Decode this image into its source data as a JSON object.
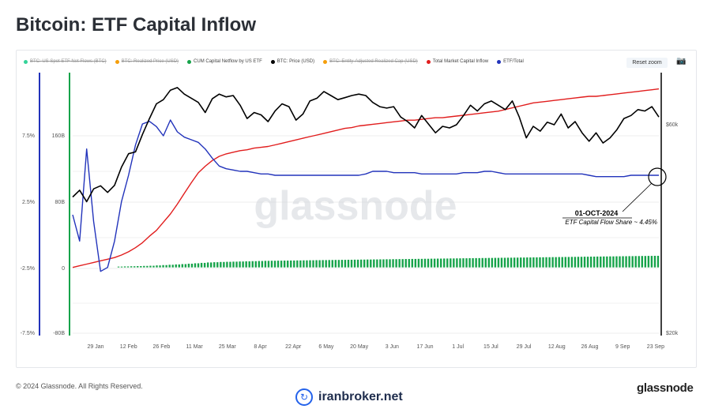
{
  "page": {
    "title": "Bitcoin: ETF Capital Inflow",
    "copyright": "© 2024 Glassnode. All Rights Reserved.",
    "brand": "glassnode",
    "watermark": "glassnode",
    "site_watermark": "iranbroker.net"
  },
  "toolbar": {
    "reset_label": "Reset zoom",
    "camera_icon": "camera-icon"
  },
  "legend": [
    {
      "label": "BTC: US Spot ETF Net Flows (BTC)",
      "color": "#34d399",
      "enabled": false
    },
    {
      "label": "BTC: Realized Price (USD)",
      "color": "#f59e0b",
      "enabled": false
    },
    {
      "label": "CUM Capital Netflow by US ETF",
      "color": "#16a34a",
      "enabled": true
    },
    {
      "label": "BTC: Price (USD)",
      "color": "#000000",
      "enabled": true
    },
    {
      "label": "BTC: Entity-Adjusted Realized Cap (USD)",
      "color": "#f59e0b",
      "enabled": false
    },
    {
      "label": "Total Market Capital Inflow",
      "color": "#e11d1d",
      "enabled": true
    },
    {
      "label": "ETF/Total",
      "color": "#2233bb",
      "enabled": true
    }
  ],
  "annotation": {
    "date": "01-OCT-2024",
    "text": "ETF Capital Flow Share ~ 4.45%"
  },
  "chart_data": {
    "type": "line",
    "x_ticks": [
      "29 Jan",
      "12 Feb",
      "26 Feb",
      "11 Mar",
      "25 Mar",
      "8 Apr",
      "22 Apr",
      "6 May",
      "20 May",
      "3 Jun",
      "17 Jun",
      "1 Jul",
      "15 Jul",
      "29 Jul",
      "12 Aug",
      "26 Aug",
      "9 Sep",
      "23 Sep"
    ],
    "left_axis_pct": {
      "ticks": [
        "7.5%",
        "2.5%",
        "-2.5%",
        "-7.5%"
      ],
      "range": [
        -7.5,
        7.5
      ]
    },
    "left_axis_usd": {
      "ticks": [
        "160B",
        "80B",
        "0",
        "-80B"
      ],
      "range": [
        -80,
        160
      ]
    },
    "right_axis": {
      "ticks": [
        "$60k",
        "$20k"
      ],
      "scale": "log"
    },
    "series": [
      {
        "name": "BTC: Price (USD)",
        "color": "#000000",
        "unit": "USD",
        "values": [
          41000,
          42500,
          40000,
          42800,
          43500,
          42000,
          43600,
          48000,
          51500,
          52000,
          57000,
          62000,
          67000,
          68500,
          72000,
          73000,
          70500,
          69000,
          67500,
          64000,
          68800,
          70500,
          69500,
          70000,
          66500,
          62000,
          64000,
          63200,
          61000,
          64500,
          67000,
          66000,
          61500,
          63500,
          68000,
          69000,
          71500,
          70000,
          68500,
          69200,
          70000,
          70500,
          70000,
          67500,
          66000,
          65500,
          66000,
          62500,
          61000,
          59000,
          63000,
          60200,
          57500,
          59500,
          59000,
          60000,
          63000,
          66500,
          64500,
          67000,
          68000,
          66500,
          65000,
          68000,
          62500,
          56000,
          59500,
          58000,
          60800,
          60000,
          63500,
          59000,
          61000,
          57500,
          55000,
          57500,
          54500,
          56000,
          58500,
          62000,
          63000,
          65000,
          64500,
          66000,
          62500
        ]
      },
      {
        "name": "Total Market Capital Inflow",
        "color": "#e11d1d",
        "unit": "USD B",
        "values": [
          0,
          2,
          4,
          6,
          8,
          10,
          12,
          15,
          19,
          24,
          30,
          38,
          45,
          55,
          65,
          77,
          90,
          103,
          115,
          123,
          130,
          135,
          138,
          140,
          142,
          143,
          145,
          146,
          147,
          149,
          151,
          153,
          155,
          157,
          159,
          161,
          163,
          165,
          167,
          169,
          170,
          172,
          173,
          174,
          175,
          176,
          177,
          178,
          179,
          179,
          180,
          181,
          182,
          182,
          183,
          184,
          185,
          186,
          187,
          188,
          189,
          190,
          192,
          194,
          196,
          198,
          200,
          201,
          202,
          203,
          204,
          205,
          206,
          207,
          208,
          208,
          209,
          210,
          211,
          212,
          213,
          214,
          215,
          216,
          217
        ]
      },
      {
        "name": "ETF/Total",
        "color": "#2233bb",
        "unit": "%",
        "values": [
          1.5,
          -0.5,
          6.5,
          1.0,
          -2.8,
          -2.5,
          -0.5,
          2.5,
          4.5,
          6.8,
          8.4,
          8.6,
          8.2,
          7.5,
          8.7,
          7.8,
          7.4,
          7.2,
          7.0,
          6.5,
          5.8,
          5.2,
          5.0,
          4.9,
          4.8,
          4.8,
          4.7,
          4.6,
          4.6,
          4.5,
          4.5,
          4.5,
          4.5,
          4.5,
          4.5,
          4.5,
          4.5,
          4.5,
          4.5,
          4.5,
          4.5,
          4.5,
          4.6,
          4.8,
          4.8,
          4.8,
          4.7,
          4.7,
          4.7,
          4.7,
          4.6,
          4.6,
          4.6,
          4.6,
          4.6,
          4.6,
          4.7,
          4.7,
          4.7,
          4.8,
          4.8,
          4.7,
          4.6,
          4.6,
          4.6,
          4.6,
          4.6,
          4.6,
          4.6,
          4.6,
          4.6,
          4.6,
          4.6,
          4.6,
          4.5,
          4.4,
          4.4,
          4.4,
          4.4,
          4.4,
          4.5,
          4.5,
          4.5,
          4.5,
          4.5
        ]
      },
      {
        "name": "CUM Capital Netflow by US ETF",
        "color": "#16a34a",
        "unit": "USD B",
        "values": [
          1,
          1.2,
          1.4,
          1.6,
          1.8,
          2,
          2.4,
          2.8,
          3.2,
          3.6,
          4,
          4.5,
          5,
          5.5,
          6,
          6.3,
          6.6,
          6.8,
          7,
          7.2,
          7.4,
          7.6,
          7.8,
          8,
          8.1,
          8.2,
          8.3,
          8.4,
          8.5,
          8.6,
          8.7,
          8.8,
          8.9,
          9,
          9.1,
          9.2,
          9.3,
          9.4,
          9.5,
          9.6,
          9.7,
          9.8,
          9.9,
          10,
          10.1,
          10.2,
          10.3,
          10.4,
          10.5,
          10.6,
          10.7,
          10.8,
          10.9,
          11,
          11.1,
          11.2,
          11.3,
          11.4,
          11.5,
          11.6,
          11.7,
          11.8,
          11.9,
          12,
          12.1,
          12.2,
          12.3,
          12.4,
          12.5,
          12.6,
          12.7,
          12.8,
          12.9,
          13,
          13.1,
          13.2,
          13.3,
          13.4,
          13.5,
          13.6,
          13.7,
          13.8,
          13.9,
          14,
          14.1
        ]
      }
    ]
  }
}
